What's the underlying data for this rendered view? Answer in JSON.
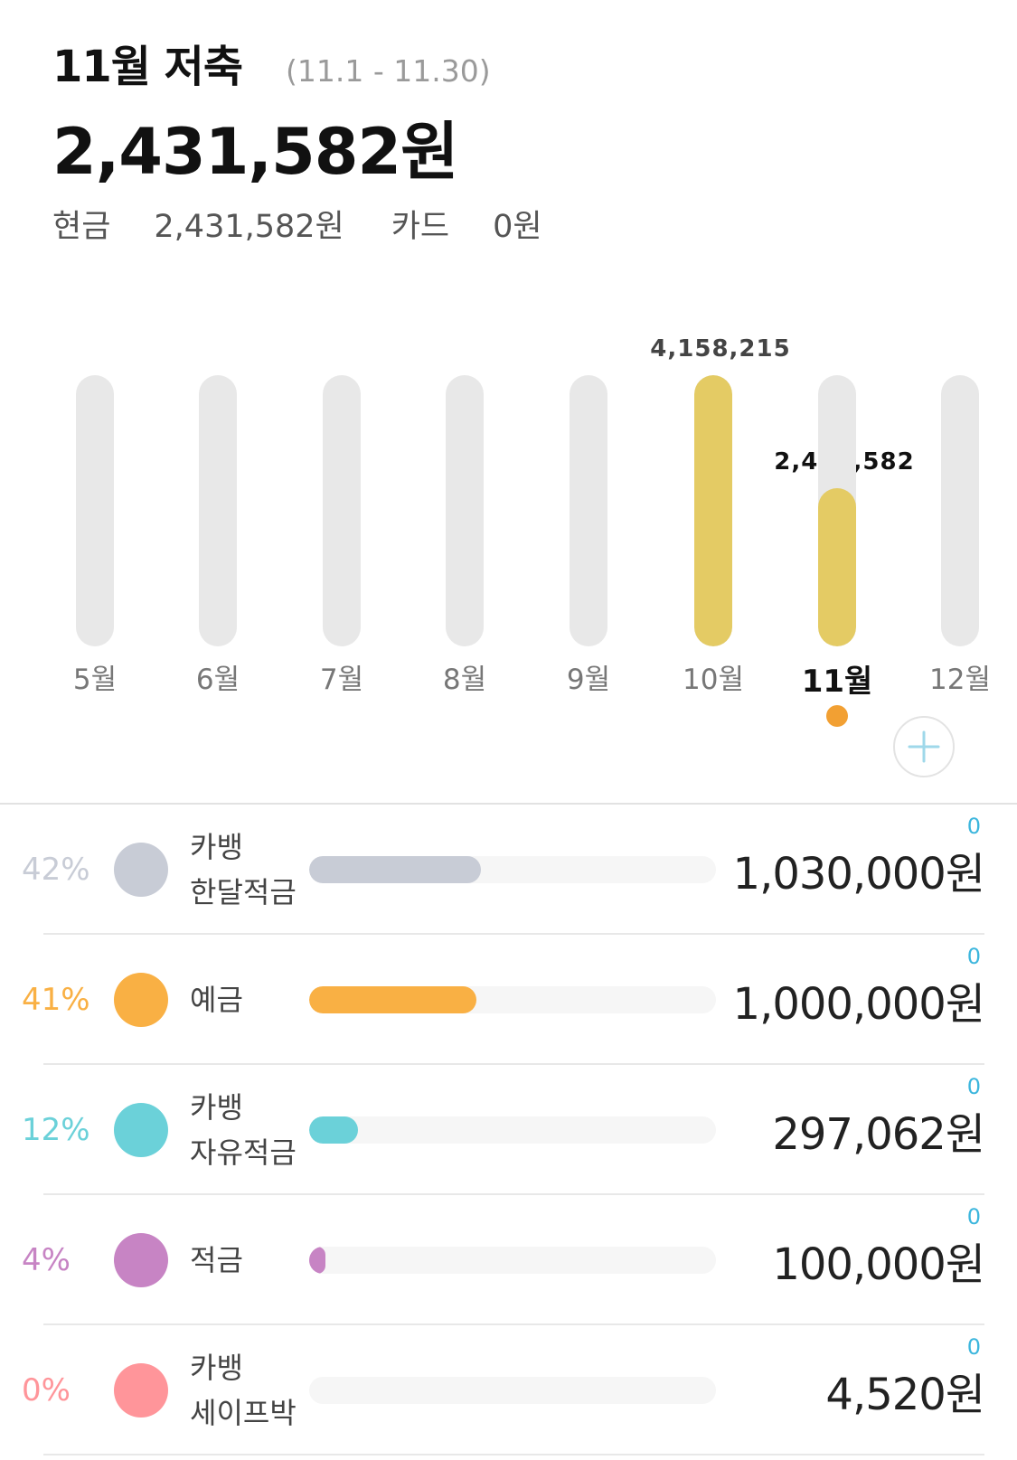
{
  "header": {
    "title": "11월 저축",
    "range": "(11.1 - 11.30)",
    "total": "2,431,582원"
  },
  "breakdown": {
    "cash_label": "현금",
    "cash_value": "2,431,582원",
    "card_label": "카드",
    "card_value": "0원"
  },
  "chart_data": {
    "type": "bar",
    "categories": [
      "5월",
      "6월",
      "7월",
      "8월",
      "9월",
      "10월",
      "11월",
      "12월"
    ],
    "values": [
      0,
      0,
      0,
      0,
      0,
      4158215,
      2431582,
      0
    ],
    "value_labels": [
      "",
      "",
      "",
      "",
      "",
      "4,158,215",
      "2,431,582",
      ""
    ],
    "ylim": [
      0,
      4158215
    ],
    "selected": "11월",
    "colors": {
      "track": "#e8e8e8",
      "fill": "#e4cb64",
      "dot": "#f2a033"
    }
  },
  "list": [
    {
      "pct": "42%",
      "name_line1": "카뱅",
      "name_line2": "한달적금",
      "ratio": 0.42,
      "amount": "1,030,000원",
      "count": "0",
      "color": "#c8ccd6"
    },
    {
      "pct": "41%",
      "name_line1": "예금",
      "name_line2": "",
      "ratio": 0.41,
      "amount": "1,000,000원",
      "count": "0",
      "color": "#f9b044"
    },
    {
      "pct": "12%",
      "name_line1": "카뱅",
      "name_line2": "자유적금",
      "ratio": 0.12,
      "amount": "297,062원",
      "count": "0",
      "color": "#6bd1d9"
    },
    {
      "pct": "4%",
      "name_line1": "적금",
      "name_line2": "",
      "ratio": 0.04,
      "amount": "100,000원",
      "count": "0",
      "color": "#c784c4"
    },
    {
      "pct": "0%",
      "name_line1": "카뱅",
      "name_line2": "세이프박",
      "ratio": 0.0,
      "amount": "4,520원",
      "count": "0",
      "color": "#ff959a"
    }
  ]
}
